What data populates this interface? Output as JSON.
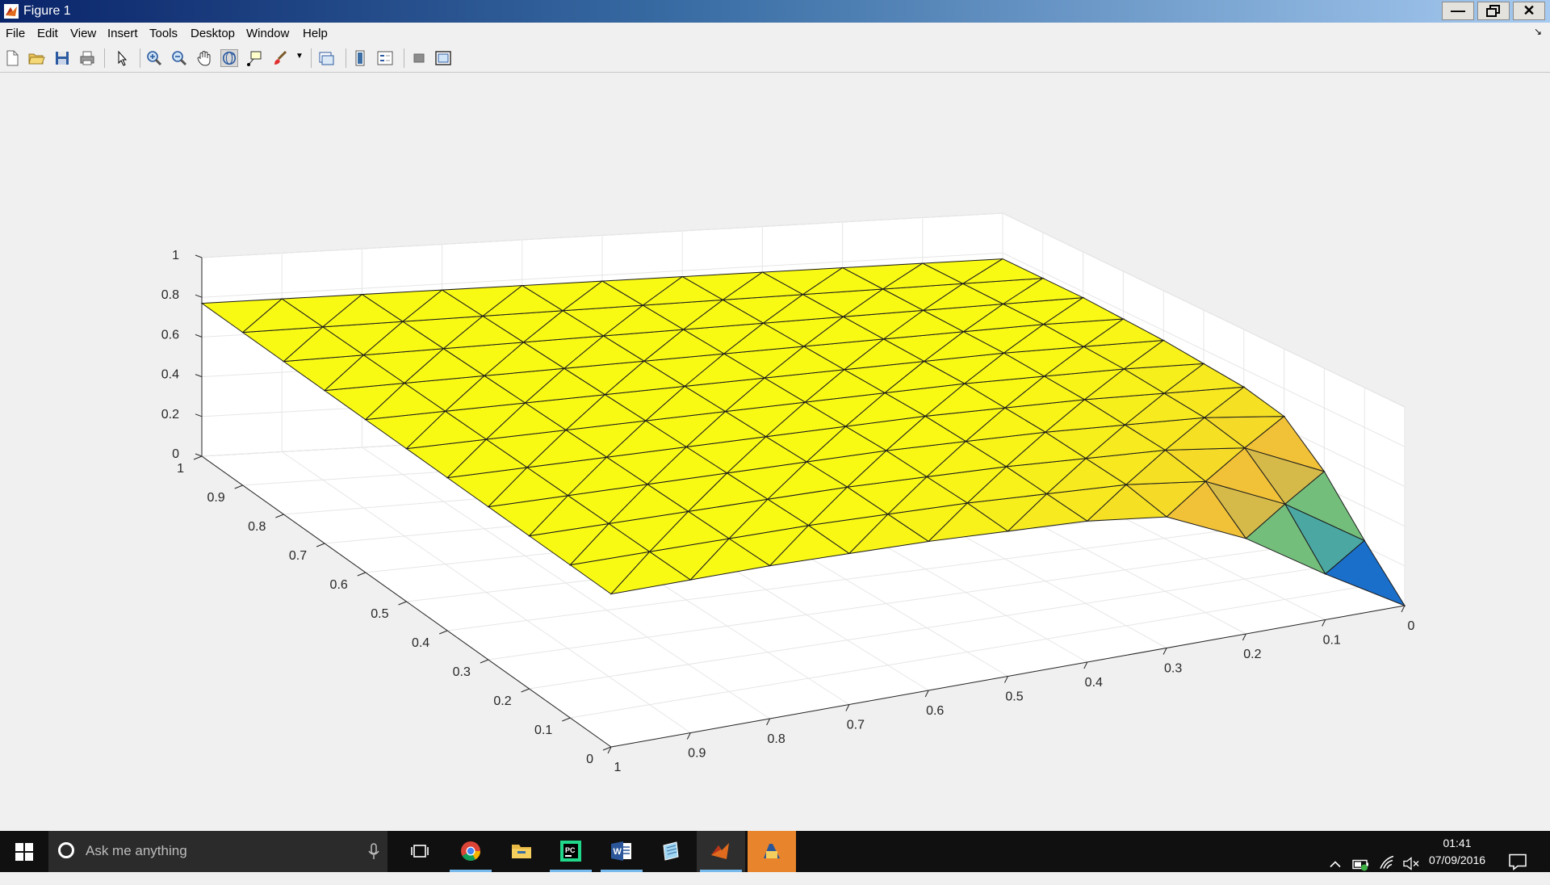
{
  "window": {
    "title": "Figure 1"
  },
  "menu": [
    "File",
    "Edit",
    "View",
    "Insert",
    "Tools",
    "Desktop",
    "Window",
    "Help"
  ],
  "toolbar": {
    "buttons": [
      "new-figure-icon",
      "open-file-icon",
      "save-icon",
      "print-icon",
      "edit-plot-icon",
      "zoom-in-icon",
      "zoom-out-icon",
      "pan-icon",
      "rotate-3d-icon",
      "data-cursor-icon",
      "brush-icon",
      "link-plot-icon",
      "colorbar-icon",
      "legend-icon",
      "hide-plot-tools-icon",
      "show-plot-tools-icon"
    ],
    "pressed": "rotate-3d-icon"
  },
  "chart_data": {
    "type": "surface",
    "z_range": [
      0,
      1
    ],
    "x_range": [
      0,
      1
    ],
    "y_range": [
      0,
      1
    ],
    "grid": true,
    "z_ticks": [
      "0",
      "0.2",
      "0.4",
      "0.6",
      "0.8",
      "1"
    ],
    "y_ticks": [
      "0",
      "0.1",
      "0.2",
      "0.3",
      "0.4",
      "0.5",
      "0.6",
      "0.7",
      "0.8",
      "0.9",
      "1"
    ],
    "x_ticks": [
      "0",
      "0.1",
      "0.2",
      "0.3",
      "0.4",
      "0.5",
      "0.6",
      "0.7",
      "0.8",
      "0.9",
      "1"
    ],
    "mesh": "triangular 10x10",
    "colormap": "parula",
    "values_note": "",
    "surface_z": [
      [
        0.0,
        0.23,
        0.48,
        0.66,
        0.71,
        0.73,
        0.75,
        0.76,
        0.77,
        0.77,
        0.77
      ],
      [
        0.23,
        0.48,
        0.66,
        0.71,
        0.73,
        0.75,
        0.76,
        0.77,
        0.77,
        0.77,
        0.77
      ],
      [
        0.48,
        0.66,
        0.71,
        0.73,
        0.75,
        0.76,
        0.77,
        0.77,
        0.77,
        0.77,
        0.77
      ],
      [
        0.66,
        0.71,
        0.73,
        0.75,
        0.76,
        0.77,
        0.77,
        0.77,
        0.77,
        0.77,
        0.77
      ],
      [
        0.71,
        0.73,
        0.75,
        0.76,
        0.77,
        0.77,
        0.77,
        0.77,
        0.77,
        0.77,
        0.77
      ],
      [
        0.73,
        0.75,
        0.76,
        0.77,
        0.77,
        0.77,
        0.77,
        0.77,
        0.77,
        0.77,
        0.77
      ],
      [
        0.75,
        0.76,
        0.77,
        0.77,
        0.77,
        0.77,
        0.77,
        0.77,
        0.77,
        0.77,
        0.77
      ],
      [
        0.76,
        0.77,
        0.77,
        0.77,
        0.77,
        0.77,
        0.77,
        0.77,
        0.77,
        0.77,
        0.77
      ],
      [
        0.77,
        0.77,
        0.77,
        0.77,
        0.77,
        0.77,
        0.77,
        0.77,
        0.77,
        0.77,
        0.77
      ],
      [
        0.77,
        0.77,
        0.77,
        0.77,
        0.77,
        0.77,
        0.77,
        0.77,
        0.77,
        0.77,
        0.77
      ],
      [
        0.77,
        0.77,
        0.77,
        0.77,
        0.77,
        0.77,
        0.77,
        0.77,
        0.77,
        0.77,
        0.77
      ]
    ]
  },
  "taskbar": {
    "search_placeholder": "Ask me anything",
    "apps": [
      "task-view-icon",
      "chrome-icon",
      "file-explorer-icon",
      "pycharm-icon",
      "word-icon",
      "notepad-icon",
      "matlab-icon",
      "pinned-folder-icon"
    ],
    "clock_time": "01:41",
    "clock_date": "07/09/2016"
  },
  "colors": {
    "surface_high": "#f9fa14",
    "surface_mid": "#f0b93c",
    "surface_low": "#6cbe80",
    "surface_lower": "#1381dc",
    "surface_min": "#352a87"
  }
}
